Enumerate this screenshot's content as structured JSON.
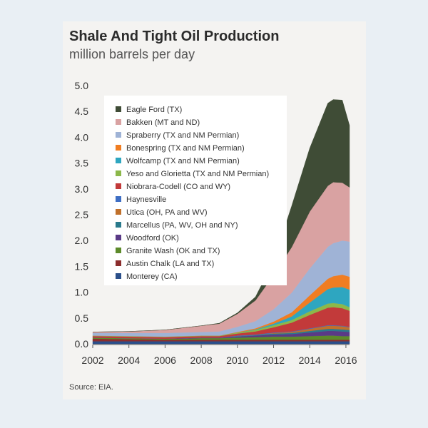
{
  "title": "Shale And Tight Oil Production",
  "subtitle": "million barrels per day",
  "source": "Source: EIA.",
  "chart_data": {
    "type": "area",
    "stacked": true,
    "x": [
      2002,
      2004,
      2006,
      2007,
      2008,
      2009,
      2010,
      2011,
      2012,
      2013,
      2014,
      2015,
      2015.3,
      2015.8,
      2016.2
    ],
    "xticks": [
      "2002",
      "2004",
      "2006",
      "2008",
      "2010",
      "2012",
      "2014",
      "2016"
    ],
    "yticks": [
      "0.0",
      "0.5",
      "1.0",
      "1.5",
      "2.0",
      "2.5",
      "3.0",
      "3.5",
      "4.0",
      "4.5",
      "5.0"
    ],
    "ylim": [
      0,
      5
    ],
    "xlim": [
      2002,
      2016.2
    ],
    "grid": false,
    "legend_position": "top-left",
    "series": [
      {
        "name": "Monterey (CA)",
        "color": "#2b4f8a",
        "values": [
          0.05,
          0.05,
          0.05,
          0.05,
          0.05,
          0.05,
          0.05,
          0.05,
          0.05,
          0.05,
          0.05,
          0.05,
          0.05,
          0.05,
          0.05
        ]
      },
      {
        "name": "Austin Chalk (LA and TX)",
        "color": "#8b2d2d",
        "values": [
          0.05,
          0.04,
          0.03,
          0.03,
          0.03,
          0.03,
          0.03,
          0.03,
          0.03,
          0.03,
          0.03,
          0.03,
          0.03,
          0.03,
          0.03
        ]
      },
      {
        "name": "Granite Wash (OK and TX)",
        "color": "#5c8a2a",
        "values": [
          0.02,
          0.02,
          0.02,
          0.02,
          0.03,
          0.03,
          0.04,
          0.05,
          0.06,
          0.06,
          0.07,
          0.08,
          0.08,
          0.07,
          0.07
        ]
      },
      {
        "name": "Woodford (OK)",
        "color": "#5a3a86",
        "values": [
          0,
          0,
          0,
          0.01,
          0.01,
          0.01,
          0.02,
          0.03,
          0.04,
          0.05,
          0.07,
          0.09,
          0.09,
          0.09,
          0.08
        ]
      },
      {
        "name": "Marcellus (PA, WV, OH and NY)",
        "color": "#2a7a8c",
        "values": [
          0,
          0,
          0,
          0,
          0,
          0,
          0.01,
          0.01,
          0.02,
          0.02,
          0.03,
          0.04,
          0.04,
          0.04,
          0.04
        ]
      },
      {
        "name": "Utica (OH, PA and WV)",
        "color": "#c0702b",
        "values": [
          0,
          0,
          0,
          0,
          0,
          0,
          0,
          0,
          0.01,
          0.02,
          0.04,
          0.06,
          0.06,
          0.06,
          0.05
        ]
      },
      {
        "name": "Haynesville",
        "color": "#3e6ec4",
        "values": [
          0,
          0,
          0,
          0,
          0,
          0,
          0.01,
          0.01,
          0.01,
          0.01,
          0.01,
          0.01,
          0.01,
          0.01,
          0.01
        ]
      },
      {
        "name": "Niobrara-Codell (CO and WY)",
        "color": "#c23a3a",
        "values": [
          0.03,
          0.03,
          0.03,
          0.03,
          0.03,
          0.03,
          0.04,
          0.06,
          0.1,
          0.17,
          0.26,
          0.34,
          0.35,
          0.34,
          0.31
        ]
      },
      {
        "name": "Yeso and Glorietta (TX and NM Permian)",
        "color": "#8cb84a",
        "values": [
          0.01,
          0.01,
          0.01,
          0.01,
          0.01,
          0.01,
          0.02,
          0.03,
          0.04,
          0.05,
          0.07,
          0.08,
          0.08,
          0.08,
          0.07
        ]
      },
      {
        "name": "Wolfcamp (TX and NM Permian)",
        "color": "#2ea6c0",
        "values": [
          0,
          0,
          0,
          0,
          0,
          0,
          0,
          0.01,
          0.03,
          0.07,
          0.17,
          0.28,
          0.3,
          0.33,
          0.34
        ]
      },
      {
        "name": "Bonespring (TX and NM Permian)",
        "color": "#f07d22",
        "values": [
          0,
          0,
          0,
          0,
          0,
          0,
          0.01,
          0.02,
          0.04,
          0.08,
          0.14,
          0.2,
          0.22,
          0.24,
          0.25
        ]
      },
      {
        "name": "Spraberry (TX and NM Permian)",
        "color": "#9fb3d6",
        "values": [
          0.05,
          0.06,
          0.07,
          0.07,
          0.07,
          0.08,
          0.1,
          0.14,
          0.24,
          0.38,
          0.52,
          0.62,
          0.64,
          0.66,
          0.68
        ]
      },
      {
        "name": "Bakken (MT and ND)",
        "color": "#d9a2a2",
        "values": [
          0.02,
          0.03,
          0.06,
          0.09,
          0.12,
          0.15,
          0.25,
          0.4,
          0.66,
          0.88,
          1.1,
          1.18,
          1.18,
          1.12,
          1.05
        ]
      },
      {
        "name": "Eagle Ford (TX)",
        "color": "#3f4c36",
        "values": [
          0,
          0,
          0,
          0,
          0,
          0.01,
          0.02,
          0.07,
          0.27,
          0.8,
          1.23,
          1.6,
          1.6,
          1.6,
          1.2
        ]
      }
    ]
  }
}
